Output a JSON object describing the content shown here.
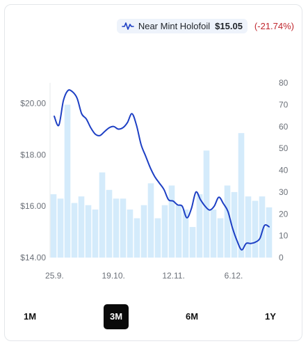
{
  "legend": {
    "icon": "line-chart-icon",
    "name": "Near Mint Holofoil",
    "price": "$15.05",
    "change": "(-21.74%)",
    "change_color": "#c0262d"
  },
  "ranges": [
    {
      "label": "1M",
      "active": false
    },
    {
      "label": "3M",
      "active": true
    },
    {
      "label": "6M",
      "active": false
    },
    {
      "label": "1Y",
      "active": false
    }
  ],
  "chart_data": {
    "type": "bar+line",
    "x_ticks": [
      "25.9.",
      "19.10.",
      "12.11.",
      "6.12."
    ],
    "y_left": {
      "ticks": [
        "$14.00",
        "$16.00",
        "$18.00",
        "$20.00"
      ],
      "range": [
        14,
        20.8
      ]
    },
    "y_right": {
      "ticks": [
        "0",
        "10",
        "20",
        "30",
        "40",
        "50",
        "60",
        "70",
        "80"
      ],
      "range": [
        0,
        80
      ]
    },
    "grid": false,
    "colors": {
      "line": "#1d3fc4",
      "bars": "#d4ebfb"
    },
    "series": [
      {
        "kind": "bar",
        "axis": "right",
        "values": [
          29,
          27,
          70,
          25,
          28,
          24,
          22,
          39,
          31,
          27,
          27,
          22,
          18,
          24,
          34,
          18,
          24,
          33,
          24,
          22,
          14,
          29,
          49,
          22,
          18,
          33,
          30,
          57,
          28,
          26,
          28,
          23
        ]
      },
      {
        "name": "Near Mint Holofoil",
        "kind": "line",
        "axis": "left",
        "values": [
          19.5,
          19.15,
          20.1,
          20.5,
          20.45,
          20.2,
          19.6,
          19.4,
          19.05,
          18.8,
          18.75,
          18.9,
          19.05,
          19.1,
          19.0,
          19.05,
          19.25,
          19.6,
          19.15,
          18.4,
          17.95,
          17.5,
          17.15,
          16.9,
          16.65,
          16.25,
          16.2,
          16.05,
          16.0,
          15.55,
          15.9,
          16.55,
          16.25,
          16.0,
          15.85,
          16.0,
          16.35,
          16.1,
          15.8,
          15.15,
          14.65,
          14.3,
          14.55,
          14.55,
          14.6,
          14.75,
          15.25,
          15.2
        ]
      }
    ]
  }
}
